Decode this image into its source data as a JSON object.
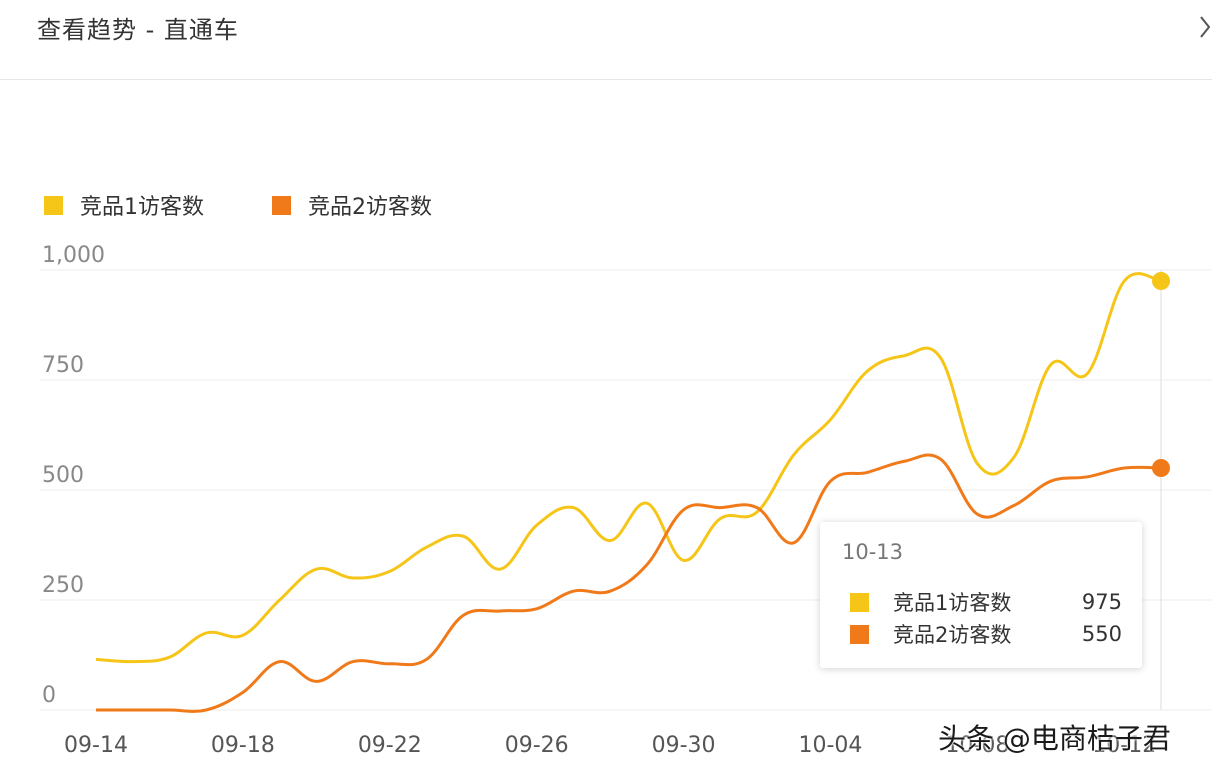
{
  "header": {
    "title": "查看趋势 - 直通车",
    "close_icon": "chevron-right-icon"
  },
  "colors": {
    "series1": "#F5C518",
    "series2": "#F07A1A",
    "grid": "#ececec",
    "axis_text": "#888888"
  },
  "chart_data": {
    "type": "line",
    "title": "",
    "xlabel": "",
    "ylabel": "",
    "ylim": [
      0,
      1000
    ],
    "yticks": [
      0,
      250,
      500,
      750,
      1000
    ],
    "ytick_labels": [
      "0",
      "250",
      "500",
      "750",
      "1,000"
    ],
    "x": [
      "09-14",
      "09-15",
      "09-16",
      "09-17",
      "09-18",
      "09-19",
      "09-20",
      "09-21",
      "09-22",
      "09-23",
      "09-24",
      "09-25",
      "09-26",
      "09-27",
      "09-28",
      "09-29",
      "09-30",
      "10-01",
      "10-02",
      "10-03",
      "10-04",
      "10-05",
      "10-06",
      "10-07",
      "10-08",
      "10-09",
      "10-10",
      "10-11",
      "10-12",
      "10-13"
    ],
    "xtick_labels": [
      "09-14",
      "09-18",
      "09-22",
      "09-26",
      "09-30",
      "10-04",
      "10-08",
      "10-12"
    ],
    "legend_position": "top-left",
    "grid": true,
    "series": [
      {
        "name": "竞品1访客数",
        "values": [
          115,
          110,
          120,
          175,
          170,
          250,
          320,
          300,
          315,
          370,
          395,
          320,
          420,
          460,
          385,
          470,
          340,
          435,
          450,
          580,
          660,
          770,
          805,
          800,
          560,
          575,
          785,
          765,
          975,
          975
        ]
      },
      {
        "name": "竞品2访客数",
        "values": [
          0,
          0,
          0,
          0,
          40,
          110,
          65,
          110,
          105,
          115,
          215,
          225,
          230,
          270,
          270,
          330,
          455,
          460,
          460,
          380,
          520,
          540,
          565,
          570,
          445,
          465,
          520,
          530,
          550,
          550
        ]
      }
    ]
  },
  "tooltip": {
    "date": "10-13",
    "rows": [
      {
        "name": "竞品1访客数",
        "value": "975"
      },
      {
        "name": "竞品2访客数",
        "value": "550"
      }
    ]
  },
  "watermark": "头条 @电商桔子君"
}
